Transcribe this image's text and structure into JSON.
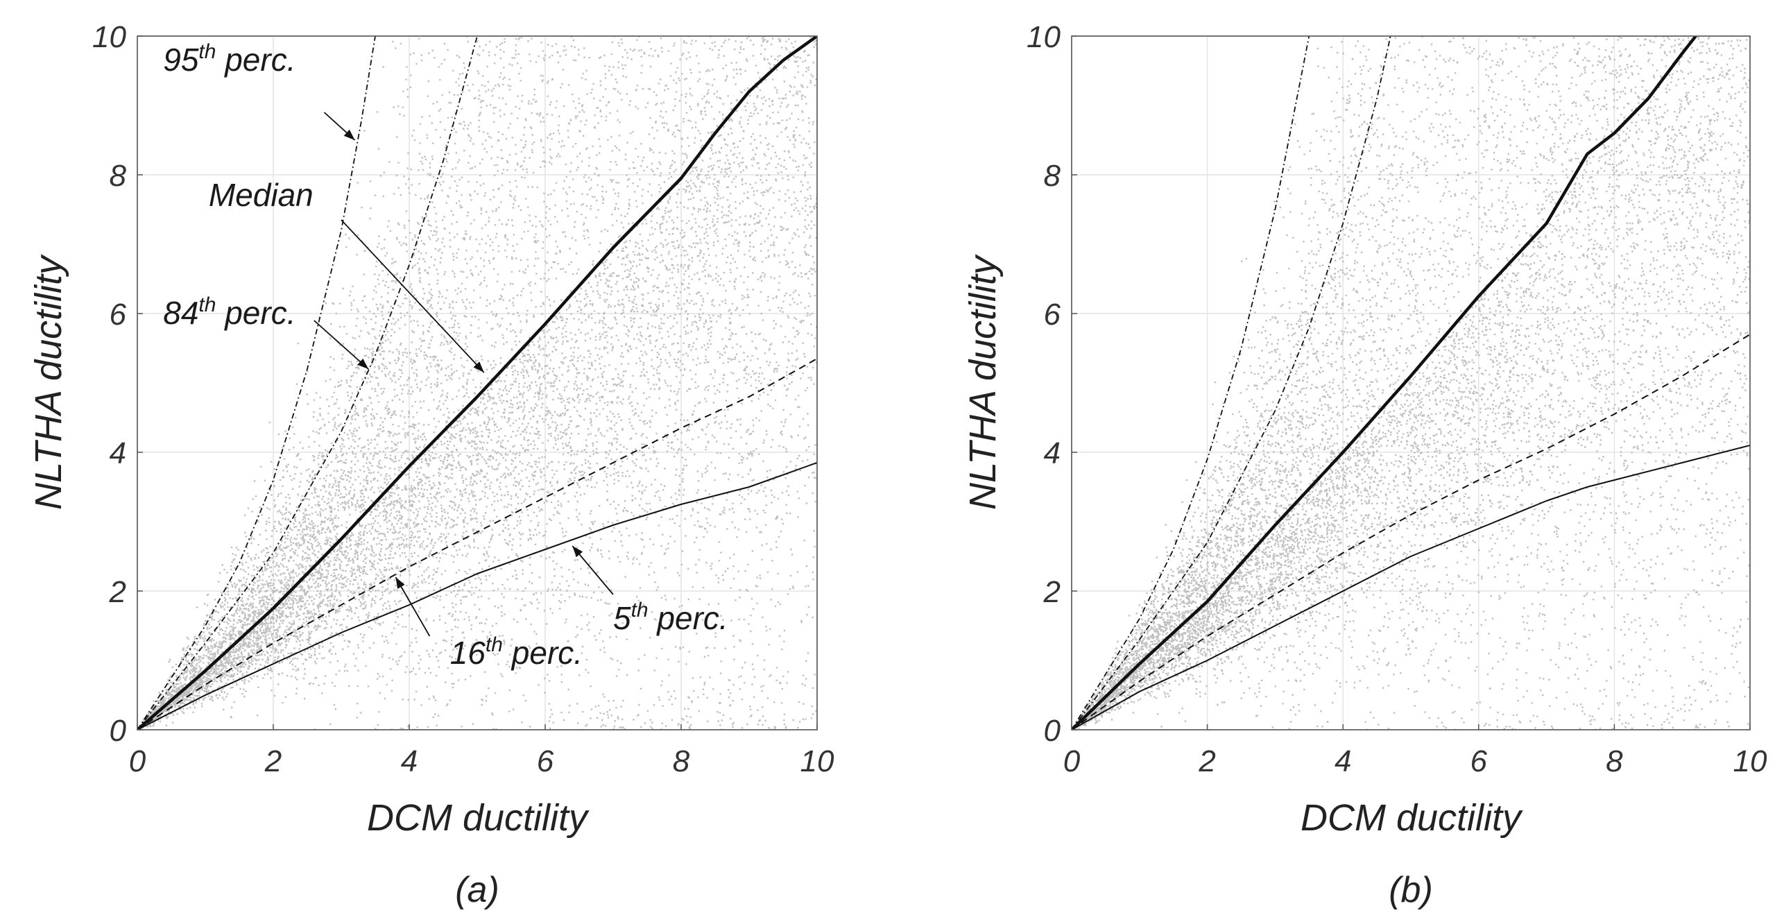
{
  "figure": {
    "panels": [
      {
        "caption": "(a)",
        "annotations": [
          {
            "base": "95",
            "sup": "th",
            "rest": " perc.",
            "series": "95th"
          },
          {
            "base": "Median",
            "sup": "",
            "rest": "",
            "series": "Median"
          },
          {
            "base": "84",
            "sup": "th",
            "rest": " perc.",
            "series": "84th"
          },
          {
            "base": "16",
            "sup": "th",
            "rest": " perc.",
            "series": "16th"
          },
          {
            "base": "5",
            "sup": "th",
            "rest": " perc.",
            "series": "5th"
          }
        ]
      },
      {
        "caption": "(b)",
        "annotations": []
      }
    ]
  },
  "chart_data": [
    {
      "type": "scatter",
      "title": "",
      "xlabel": "DCM ductility",
      "ylabel": "NLTHA ductility",
      "xlim": [
        0,
        10
      ],
      "ylim": [
        0,
        10
      ],
      "xticks": [
        "0",
        "2",
        "4",
        "6",
        "8",
        "10"
      ],
      "yticks": [
        "0",
        "2",
        "4",
        "6",
        "8",
        "10"
      ],
      "grid": true,
      "scatter_color": "#b4b4b4",
      "series": [
        {
          "name": "95th perc.",
          "style": "dashdot-thin",
          "x": [
            0,
            0.5,
            1,
            1.5,
            2,
            2.5,
            3,
            3.3,
            3.5
          ],
          "y": [
            0,
            0.75,
            1.5,
            2.4,
            3.6,
            5.2,
            7.2,
            8.8,
            10
          ]
        },
        {
          "name": "84th perc.",
          "style": "dashdot-thin",
          "x": [
            0,
            1,
            2,
            3,
            3.5,
            4,
            4.5,
            5
          ],
          "y": [
            0,
            1.25,
            2.55,
            4.3,
            5.4,
            6.7,
            8.2,
            10
          ]
        },
        {
          "name": "Median",
          "style": "solid-thick",
          "x": [
            0,
            1,
            2,
            3,
            4,
            5,
            6,
            7,
            7.5,
            8,
            8.5,
            9,
            9.5,
            10
          ],
          "y": [
            0,
            0.85,
            1.75,
            2.75,
            3.8,
            4.8,
            5.85,
            6.95,
            7.45,
            7.95,
            8.6,
            9.2,
            9.65,
            10
          ]
        },
        {
          "name": "16th perc.",
          "style": "dashed",
          "x": [
            0,
            1,
            2,
            3,
            4,
            5,
            6,
            7,
            8,
            9,
            10
          ],
          "y": [
            0,
            0.65,
            1.25,
            1.8,
            2.35,
            2.85,
            3.35,
            3.85,
            4.35,
            4.8,
            5.35
          ]
        },
        {
          "name": "5th perc.",
          "style": "solid-thin",
          "x": [
            0,
            1,
            2,
            3,
            4,
            5,
            6,
            7,
            8,
            9,
            10
          ],
          "y": [
            0,
            0.5,
            0.95,
            1.4,
            1.8,
            2.25,
            2.6,
            2.95,
            3.25,
            3.5,
            3.85
          ]
        }
      ]
    },
    {
      "type": "scatter",
      "title": "",
      "xlabel": "DCM ductility",
      "ylabel": "NLTHA ductility",
      "xlim": [
        0,
        10
      ],
      "ylim": [
        0,
        10
      ],
      "xticks": [
        "0",
        "2",
        "4",
        "6",
        "8",
        "10"
      ],
      "yticks": [
        "0",
        "2",
        "4",
        "6",
        "8",
        "10"
      ],
      "grid": true,
      "scatter_color": "#b4b4b4",
      "series": [
        {
          "name": "95th perc.",
          "style": "dashdot-thin",
          "x": [
            0,
            0.5,
            1,
            1.5,
            2,
            2.5,
            3,
            3.3,
            3.5
          ],
          "y": [
            0,
            0.8,
            1.6,
            2.6,
            3.9,
            5.5,
            7.5,
            9,
            10
          ]
        },
        {
          "name": "84th perc.",
          "style": "dashdot-thin",
          "x": [
            0,
            1,
            2,
            3,
            3.5,
            4,
            4.5,
            4.7
          ],
          "y": [
            0,
            1.3,
            2.7,
            4.6,
            5.8,
            7.3,
            9.1,
            10
          ]
        },
        {
          "name": "Median",
          "style": "solid-thick",
          "x": [
            0,
            1,
            2,
            3,
            4,
            5,
            6,
            7,
            7.6,
            8,
            8.5,
            9,
            9.2
          ],
          "y": [
            0,
            0.95,
            1.85,
            2.95,
            4.0,
            5.1,
            6.25,
            7.3,
            8.3,
            8.6,
            9.1,
            9.75,
            10
          ]
        },
        {
          "name": "16th perc.",
          "style": "dashed",
          "x": [
            0,
            1,
            2,
            3,
            4,
            5,
            6,
            7,
            8,
            9,
            10
          ],
          "y": [
            0,
            0.7,
            1.35,
            1.95,
            2.55,
            3.1,
            3.6,
            4.05,
            4.55,
            5.1,
            5.7
          ]
        },
        {
          "name": "5th perc.",
          "style": "solid-thin",
          "x": [
            0,
            1,
            2,
            3,
            4,
            5,
            6,
            7,
            7.6,
            8,
            9,
            10
          ],
          "y": [
            0,
            0.55,
            1.0,
            1.5,
            2.0,
            2.5,
            2.9,
            3.3,
            3.5,
            3.6,
            3.85,
            4.1
          ]
        }
      ]
    }
  ]
}
